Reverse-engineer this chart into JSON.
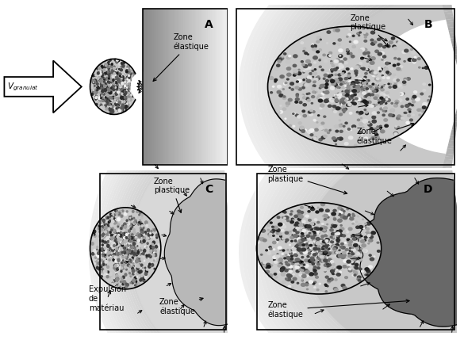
{
  "bg_color": "#ffffff",
  "label_A": "A",
  "label_B": "B",
  "label_C": "C",
  "label_D": "D",
  "text_zone_elastique": "Zone\nélastique",
  "text_zone_plastique": "Zone\nplastique",
  "text_expulsion": "Expulsion\nde\nmatériau",
  "granite_bg": "#c8c8c8",
  "granite_dots_light": 0.85,
  "granite_dots_dark": 0.15,
  "elastic_color_B": "#ffffff",
  "plastic_color_C": "#c0c0c0",
  "plastic_color_D": "#686868",
  "grad_dark": "#808080",
  "grad_light": "#e8e8e8"
}
